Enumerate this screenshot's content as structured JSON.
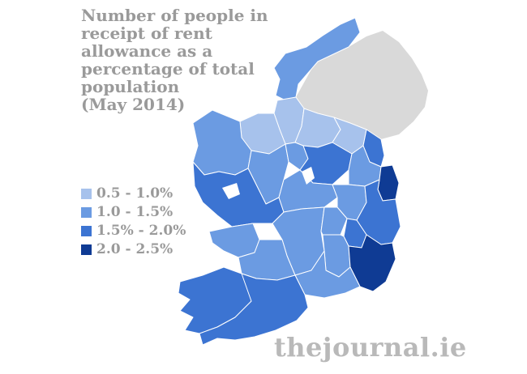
{
  "title_lines": [
    "Number of people in",
    "receipt of rent",
    "allowance as a",
    "percentage of total",
    "population",
    "(May 2014)"
  ],
  "legend": [
    {
      "label": "0.5 - 1.0%",
      "color": "#a7c2ec"
    },
    {
      "label": "1.0 - 1.5%",
      "color": "#6b9be2"
    },
    {
      "label": "1.5% - 2.0%",
      "color": "#3c74d2"
    },
    {
      "label": "2.0 - 2.5%",
      "color": "#0f3b94"
    }
  ],
  "colors": {
    "northern_ireland": "#d9d9d9",
    "border": "#ffffff",
    "title_text": "#9a9a9a",
    "brand_text": "#b9b9b9"
  },
  "brand": "thejournal.ie",
  "counties": [
    {
      "name": "donegal",
      "band": 1
    },
    {
      "name": "leitrim",
      "band": 0
    },
    {
      "name": "sligo",
      "band": 0
    },
    {
      "name": "cavan",
      "band": 0
    },
    {
      "name": "monaghan",
      "band": 0
    },
    {
      "name": "louth",
      "band": 2
    },
    {
      "name": "mayo",
      "band": 1
    },
    {
      "name": "roscommon",
      "band": 1
    },
    {
      "name": "longford",
      "band": 1
    },
    {
      "name": "westmeath",
      "band": 2
    },
    {
      "name": "meath",
      "band": 1
    },
    {
      "name": "dublin",
      "band": 3
    },
    {
      "name": "galway",
      "band": 2
    },
    {
      "name": "offaly",
      "band": 1
    },
    {
      "name": "kildare",
      "band": 1
    },
    {
      "name": "wicklow",
      "band": 2
    },
    {
      "name": "clare",
      "band": 1
    },
    {
      "name": "tipperary",
      "band": 1
    },
    {
      "name": "laois",
      "band": 1
    },
    {
      "name": "carlow",
      "band": 2
    },
    {
      "name": "kilkenny",
      "band": 1
    },
    {
      "name": "wexford",
      "band": 3
    },
    {
      "name": "limerick",
      "band": 1
    },
    {
      "name": "waterford",
      "band": 1
    },
    {
      "name": "kerry",
      "band": 2
    },
    {
      "name": "cork",
      "band": 2
    }
  ]
}
